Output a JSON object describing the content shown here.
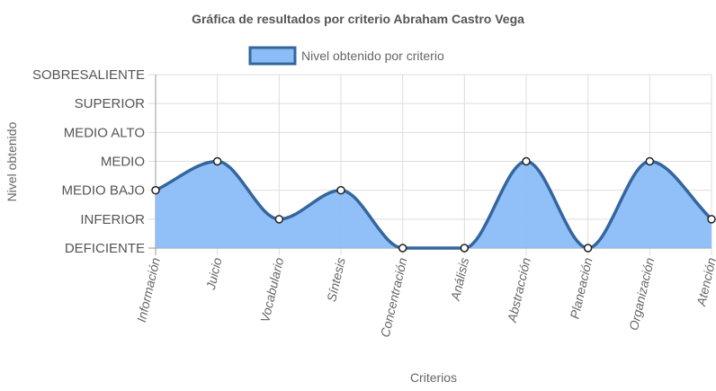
{
  "chart_data": {
    "type": "area",
    "title": "Gráfica de resultados por criterio Abraham Castro Vega",
    "xlabel": "Criterios",
    "ylabel": "Nivel obtenido",
    "categories": [
      "Información",
      "Juicio",
      "Vocabulario",
      "Síntesis",
      "Concentración",
      "Análisis",
      "Abstracción",
      "Planeación",
      "Organización",
      "Atención"
    ],
    "levels": [
      "DEFICIENTE",
      "INFERIOR",
      "MEDIO BAJO",
      "MEDIO",
      "MEDIO ALTO",
      "SUPERIOR",
      "SOBRESALIENTE"
    ],
    "series": [
      {
        "name": "Nivel obtenido por criterio",
        "values": [
          2,
          3,
          1,
          2,
          0,
          0,
          3,
          0,
          3,
          1
        ]
      }
    ],
    "ylim": [
      0,
      6
    ],
    "grid": true,
    "legend_position": "top",
    "fill_color": "#8BBCF7",
    "line_color": "#34669E"
  }
}
